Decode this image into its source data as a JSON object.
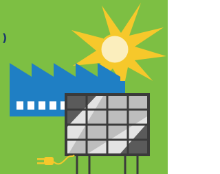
{
  "label": ")"
}
